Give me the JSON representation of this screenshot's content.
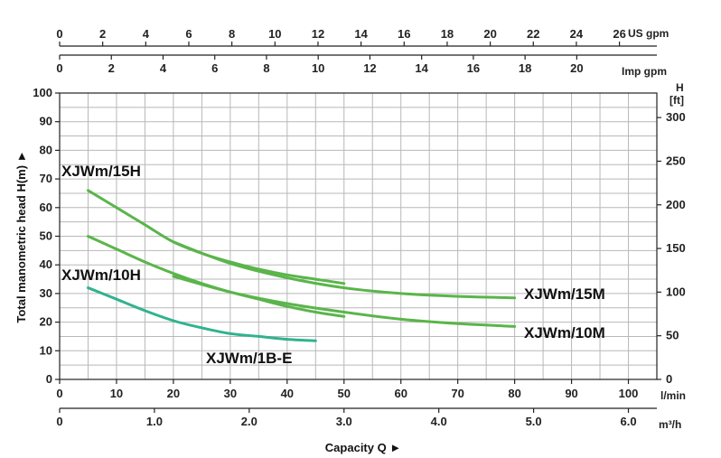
{
  "chart_data": {
    "type": "line",
    "title": "",
    "xlabel": "Capacity Q ►",
    "ylabel": "Total manometric head H(m) ►",
    "xlim": [
      0,
      105
    ],
    "ylim": [
      0,
      100
    ],
    "grid": true,
    "x_axes": {
      "primary": {
        "unit": "l/min",
        "ticks": [
          "0",
          "10",
          "20",
          "30",
          "40",
          "50",
          "60",
          "70",
          "80",
          "90",
          "100"
        ]
      },
      "m3h": {
        "unit": "m³/h",
        "ticks": [
          "0",
          "1.0",
          "2.0",
          "3.0",
          "4.0",
          "5.0",
          "6.0"
        ]
      },
      "imp_gpm": {
        "unit": "Imp gpm",
        "ticks": [
          "0",
          "2",
          "4",
          "6",
          "8",
          "10",
          "12",
          "14",
          "16",
          "18",
          "20"
        ]
      },
      "us_gpm": {
        "unit": "US gpm",
        "ticks": [
          "0",
          "2",
          "4",
          "6",
          "8",
          "10",
          "12",
          "14",
          "16",
          "18",
          "20",
          "22",
          "24",
          "26"
        ]
      }
    },
    "y_axes": {
      "primary": {
        "ticks": [
          "0",
          "10",
          "20",
          "30",
          "40",
          "50",
          "60",
          "70",
          "80",
          "90",
          "100"
        ]
      },
      "feet": {
        "unit_top": "H",
        "unit": "[ft]",
        "ticks": [
          "0",
          "50",
          "100",
          "150",
          "200",
          "250",
          "300"
        ]
      }
    },
    "series": [
      {
        "name": "XJWm/15H",
        "color": "#5ab54a",
        "x": [
          5,
          10,
          15,
          20,
          25,
          30,
          35,
          40,
          45,
          50
        ],
        "y": [
          66,
          60,
          54,
          48,
          44,
          41,
          38.5,
          36.5,
          35,
          33.5
        ]
      },
      {
        "name": "XJWm/15M",
        "color": "#5ab54a",
        "x": [
          20,
          30,
          40,
          50,
          60,
          70,
          80
        ],
        "y": [
          48,
          40.5,
          35.5,
          32,
          30,
          29,
          28.5
        ]
      },
      {
        "name": "XJWm/10H",
        "color": "#5ab54a",
        "x": [
          5,
          10,
          15,
          20,
          25,
          30,
          35,
          40,
          45,
          50
        ],
        "y": [
          50,
          45.5,
          41,
          37,
          33.5,
          30.5,
          28,
          25.5,
          23.5,
          22
        ]
      },
      {
        "name": "XJWm/10M",
        "color": "#5ab54a",
        "x": [
          20,
          30,
          40,
          50,
          60,
          70,
          80
        ],
        "y": [
          36,
          30.5,
          26.5,
          23.5,
          21,
          19.5,
          18.5
        ]
      },
      {
        "name": "XJWm/1B-E",
        "color": "#2fb38e",
        "x": [
          5,
          10,
          15,
          20,
          25,
          30,
          35,
          40,
          45
        ],
        "y": [
          32,
          28,
          24,
          20.5,
          18,
          16,
          15,
          14,
          13.5
        ]
      }
    ]
  }
}
